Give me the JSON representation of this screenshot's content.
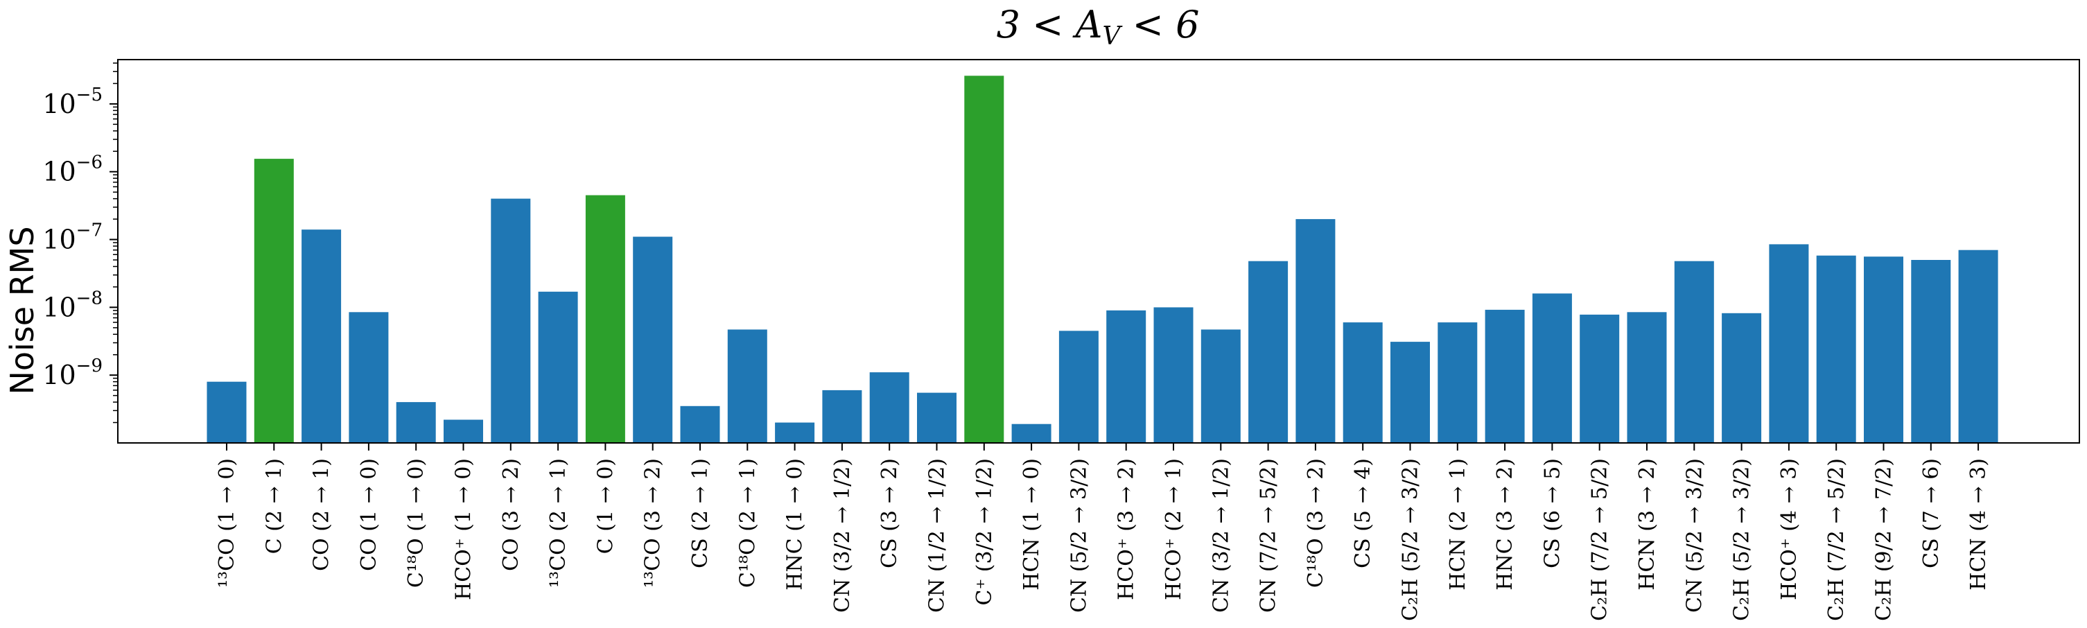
{
  "chart_data": {
    "type": "bar",
    "title": "3 < A_V < 6",
    "ylabel": "Noise RMS",
    "yscale": "log",
    "ylim": [
      1e-10,
      4.5e-05
    ],
    "yticks": [
      {
        "value": 1e-09,
        "mantissa": "10",
        "exp": "−9"
      },
      {
        "value": 1e-08,
        "mantissa": "10",
        "exp": "−8"
      },
      {
        "value": 1e-07,
        "mantissa": "10",
        "exp": "−7"
      },
      {
        "value": 1e-06,
        "mantissa": "10",
        "exp": "−6"
      },
      {
        "value": 1e-05,
        "mantissa": "10",
        "exp": "−5"
      }
    ],
    "colors": {
      "default": "#1f77b4",
      "highlight": "#2ca02c"
    },
    "bars": [
      {
        "label": "¹³CO (1 → 0)",
        "value": 8e-10,
        "highlight": false
      },
      {
        "label": "C (2 → 1)",
        "value": 1.55e-06,
        "highlight": true
      },
      {
        "label": "CO (2 → 1)",
        "value": 1.4e-07,
        "highlight": false
      },
      {
        "label": "CO (1 → 0)",
        "value": 8.5e-09,
        "highlight": false
      },
      {
        "label": "C¹⁸O (1 → 0)",
        "value": 4e-10,
        "highlight": false
      },
      {
        "label": "HCO⁺ (1 → 0)",
        "value": 2.2e-10,
        "highlight": false
      },
      {
        "label": "CO (3 → 2)",
        "value": 4e-07,
        "highlight": false
      },
      {
        "label": "¹³CO (2 → 1)",
        "value": 1.7e-08,
        "highlight": false
      },
      {
        "label": "C (1 → 0)",
        "value": 4.5e-07,
        "highlight": true
      },
      {
        "label": "¹³CO (3 → 2)",
        "value": 1.1e-07,
        "highlight": false
      },
      {
        "label": "CS (2 → 1)",
        "value": 3.5e-10,
        "highlight": false
      },
      {
        "label": "C¹⁸O (2 → 1)",
        "value": 4.7e-09,
        "highlight": false
      },
      {
        "label": "HNC (1 → 0)",
        "value": 2e-10,
        "highlight": false
      },
      {
        "label": "CN (3/2 → 1/2)",
        "value": 6e-10,
        "highlight": false
      },
      {
        "label": "CS (3 → 2)",
        "value": 1.1e-09,
        "highlight": false
      },
      {
        "label": "CN (1/2 → 1/2)",
        "value": 5.5e-10,
        "highlight": false
      },
      {
        "label": "C⁺ (3/2 → 1/2)",
        "value": 2.6e-05,
        "highlight": true
      },
      {
        "label": "HCN (1 → 0)",
        "value": 1.9e-10,
        "highlight": false
      },
      {
        "label": "CN (5/2 → 3/2)",
        "value": 4.5e-09,
        "highlight": false
      },
      {
        "label": "HCO⁺ (3 → 2)",
        "value": 9e-09,
        "highlight": false
      },
      {
        "label": "HCO⁺ (2 → 1)",
        "value": 1e-08,
        "highlight": false
      },
      {
        "label": "CN (3/2 → 1/2)",
        "value": 4.7e-09,
        "highlight": false
      },
      {
        "label": "CN (7/2 → 5/2)",
        "value": 4.8e-08,
        "highlight": false
      },
      {
        "label": "C¹⁸O (3 → 2)",
        "value": 2e-07,
        "highlight": false
      },
      {
        "label": "CS (5 → 4)",
        "value": 6e-09,
        "highlight": false
      },
      {
        "label": "C₂H (5/2 → 3/2)",
        "value": 3.1e-09,
        "highlight": false
      },
      {
        "label": "HCN (2 → 1)",
        "value": 6e-09,
        "highlight": false
      },
      {
        "label": "HNC (3 → 2)",
        "value": 9.2e-09,
        "highlight": false
      },
      {
        "label": "CS (6 → 5)",
        "value": 1.6e-08,
        "highlight": false
      },
      {
        "label": "C₂H (7/2 → 5/2)",
        "value": 7.8e-09,
        "highlight": false
      },
      {
        "label": "HCN (3 → 2)",
        "value": 8.5e-09,
        "highlight": false
      },
      {
        "label": "CN (5/2 → 3/2)",
        "value": 4.8e-08,
        "highlight": false
      },
      {
        "label": "C₂H (5/2 → 3/2)",
        "value": 8.2e-09,
        "highlight": false
      },
      {
        "label": "HCO⁺ (4 → 3)",
        "value": 8.5e-08,
        "highlight": false
      },
      {
        "label": "C₂H (7/2 → 5/2)",
        "value": 5.8e-08,
        "highlight": false
      },
      {
        "label": "C₂H (9/2 → 7/2)",
        "value": 5.6e-08,
        "highlight": false
      },
      {
        "label": "CS (7 → 6)",
        "value": 5e-08,
        "highlight": false
      },
      {
        "label": "HCN (4 → 3)",
        "value": 7e-08,
        "highlight": false
      }
    ]
  }
}
